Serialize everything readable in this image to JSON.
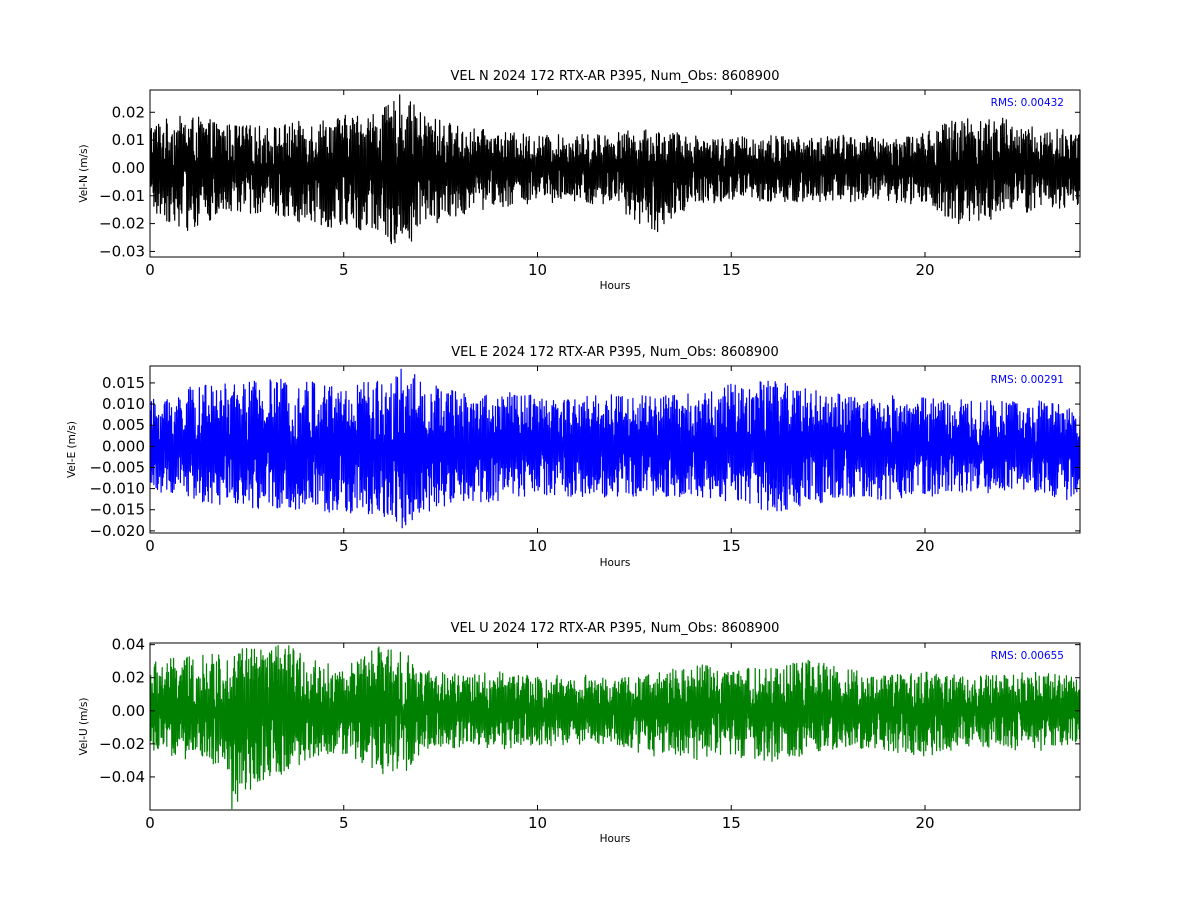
{
  "chart_data": [
    {
      "type": "line",
      "title": "VEL N 2024 172 RTX-AR  P395, Num_Obs: 8608900",
      "xlabel": "Hours",
      "ylabel": "Vel-N (m/s)",
      "xlim": [
        0,
        24
      ],
      "ylim": [
        -0.032,
        0.028
      ],
      "xticks": [
        0,
        5,
        10,
        15,
        20
      ],
      "yticks": [
        0.02,
        0.01,
        0.0,
        -0.01,
        -0.02,
        -0.03
      ],
      "ytick_labels": [
        "0.02",
        "0.01",
        "0.00",
        "−0.01",
        "−0.02",
        "−0.03"
      ],
      "color": "#000000",
      "annotation": "RMS:  0.00432",
      "annotation_color": "#0000ff",
      "series": [
        {
          "envelope_hours": [
            0,
            1,
            2,
            3,
            4,
            5,
            6,
            6.5,
            7,
            8,
            9,
            10,
            11,
            12,
            13,
            14,
            15,
            16,
            17,
            18,
            19,
            20,
            21,
            22,
            23,
            24
          ],
          "envelope_pos": [
            0.017,
            0.019,
            0.016,
            0.015,
            0.017,
            0.019,
            0.021,
            0.027,
            0.02,
            0.015,
            0.013,
            0.012,
            0.012,
            0.013,
            0.014,
            0.012,
            0.011,
            0.012,
            0.011,
            0.012,
            0.011,
            0.013,
            0.019,
            0.018,
            0.014,
            0.014
          ],
          "envelope_neg": [
            -0.016,
            -0.023,
            -0.017,
            -0.016,
            -0.02,
            -0.022,
            -0.024,
            -0.031,
            -0.022,
            -0.017,
            -0.014,
            -0.013,
            -0.013,
            -0.014,
            -0.024,
            -0.013,
            -0.012,
            -0.013,
            -0.012,
            -0.013,
            -0.012,
            -0.014,
            -0.021,
            -0.018,
            -0.015,
            -0.015
          ]
        }
      ]
    },
    {
      "type": "line",
      "title": "VEL E 2024 172 RTX-AR  P395, Num_Obs: 8608900",
      "xlabel": "Hours",
      "ylabel": "Vel-E (m/s)",
      "xlim": [
        0,
        24
      ],
      "ylim": [
        -0.0205,
        0.019
      ],
      "xticks": [
        0,
        5,
        10,
        15,
        20
      ],
      "yticks": [
        0.015,
        0.01,
        0.005,
        0.0,
        -0.005,
        -0.01,
        -0.015,
        -0.02
      ],
      "ytick_labels": [
        "0.015",
        "0.010",
        "0.005",
        "0.000",
        "−0.005",
        "−0.010",
        "−0.015",
        "−0.020"
      ],
      "color": "#0000ff",
      "annotation": "RMS:  0.00291",
      "annotation_color": "#0000ff",
      "series": [
        {
          "envelope_hours": [
            0,
            1,
            2,
            3,
            4,
            5,
            6,
            6.5,
            7,
            8,
            9,
            10,
            11,
            12,
            13,
            14,
            15,
            16,
            17,
            18,
            19,
            20,
            21,
            22,
            23,
            24
          ],
          "envelope_pos": [
            0.011,
            0.014,
            0.015,
            0.016,
            0.016,
            0.015,
            0.016,
            0.019,
            0.016,
            0.013,
            0.013,
            0.012,
            0.012,
            0.013,
            0.012,
            0.013,
            0.015,
            0.016,
            0.014,
            0.012,
            0.012,
            0.012,
            0.011,
            0.011,
            0.011,
            0.009
          ],
          "envelope_neg": [
            -0.01,
            -0.013,
            -0.014,
            -0.015,
            -0.015,
            -0.016,
            -0.017,
            -0.02,
            -0.016,
            -0.014,
            -0.013,
            -0.012,
            -0.012,
            -0.012,
            -0.012,
            -0.012,
            -0.013,
            -0.017,
            -0.014,
            -0.012,
            -0.013,
            -0.012,
            -0.011,
            -0.011,
            -0.011,
            -0.014
          ]
        }
      ]
    },
    {
      "type": "line",
      "title": "VEL U 2024 172 RTX-AR  P395, Num_Obs: 8608900",
      "xlabel": "Hours",
      "ylabel": "Vel-U (m/s)",
      "xlim": [
        0,
        24
      ],
      "ylim": [
        -0.06,
        0.041
      ],
      "xticks": [
        0,
        5,
        10,
        15,
        20
      ],
      "yticks": [
        0.04,
        0.02,
        0.0,
        -0.02,
        -0.04
      ],
      "ytick_labels": [
        "0.04",
        "0.02",
        "0.00",
        "−0.02",
        "−0.04"
      ],
      "color": "#008000",
      "annotation": "RMS:  0.00655",
      "annotation_color": "#0000ff",
      "series": [
        {
          "envelope_hours": [
            0,
            1,
            2,
            2.1,
            3,
            3.5,
            4,
            5,
            6,
            6.5,
            7,
            8,
            9,
            10,
            11,
            12,
            13,
            14,
            15,
            16,
            17,
            18,
            19,
            20,
            21,
            22,
            23,
            24
          ],
          "envelope_pos": [
            0.03,
            0.033,
            0.035,
            0.041,
            0.038,
            0.041,
            0.033,
            0.026,
            0.041,
            0.038,
            0.025,
            0.022,
            0.024,
            0.021,
            0.022,
            0.02,
            0.022,
            0.03,
            0.025,
            0.027,
            0.031,
            0.025,
            0.022,
            0.024,
            0.021,
            0.022,
            0.024,
            0.02
          ],
          "envelope_neg": [
            -0.025,
            -0.03,
            -0.035,
            -0.06,
            -0.04,
            -0.038,
            -0.032,
            -0.026,
            -0.038,
            -0.042,
            -0.025,
            -0.022,
            -0.024,
            -0.022,
            -0.02,
            -0.022,
            -0.028,
            -0.03,
            -0.028,
            -0.031,
            -0.027,
            -0.022,
            -0.024,
            -0.028,
            -0.022,
            -0.023,
            -0.025,
            -0.02
          ]
        }
      ]
    }
  ]
}
